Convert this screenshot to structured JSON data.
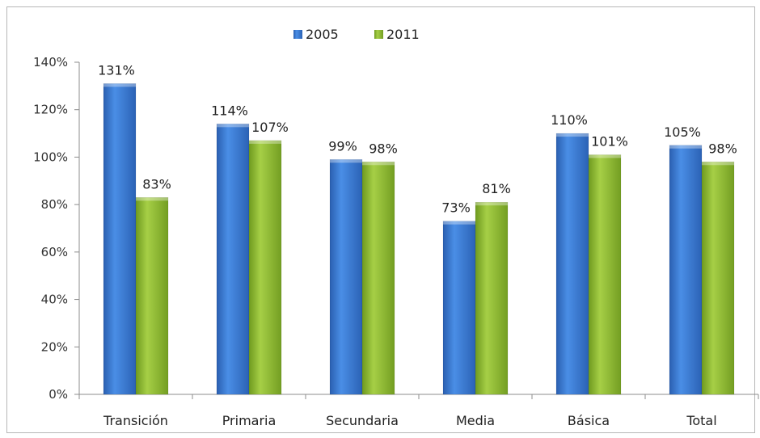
{
  "chart_data": {
    "type": "bar",
    "categories": [
      "Transición",
      "Primaria",
      "Secundaria",
      "Media",
      "Básica",
      "Total"
    ],
    "series": [
      {
        "name": "2005",
        "values": [
          131,
          114,
          99,
          73,
          110,
          105
        ],
        "labels": [
          "131%",
          "114%",
          "99%",
          "73%",
          "110%",
          "105%"
        ],
        "color": "#3d7fd8"
      },
      {
        "name": "2011",
        "values": [
          83,
          107,
          98,
          81,
          101,
          98
        ],
        "labels": [
          "83%",
          "107%",
          "98%",
          "81%",
          "101%",
          "98%"
        ],
        "color": "#93bd35"
      }
    ],
    "yticks": [
      "0%",
      "20%",
      "40%",
      "60%",
      "80%",
      "100%",
      "120%",
      "140%"
    ],
    "ylim": [
      0,
      140
    ],
    "legend_position": "top",
    "grid": false
  }
}
